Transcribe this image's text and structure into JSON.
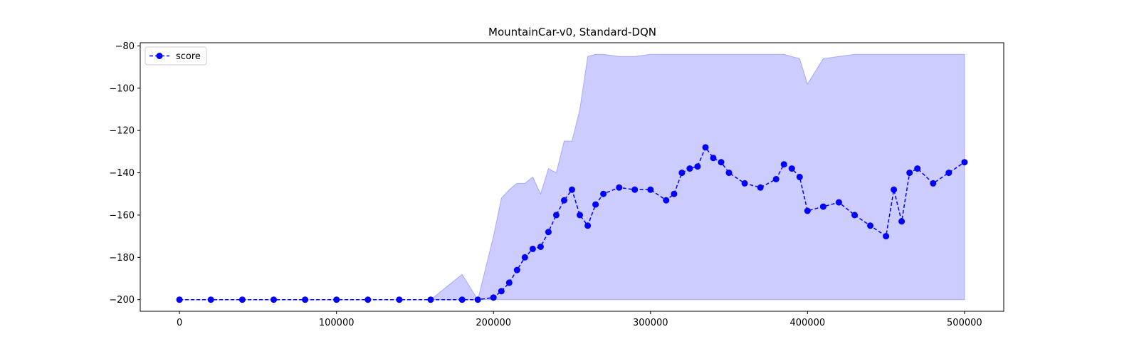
{
  "chart_data": {
    "type": "line",
    "title": "MountainCar-v0, Standard-DQN",
    "xlabel": "",
    "ylabel": "",
    "xlim": [
      -25000,
      525000
    ],
    "ylim": [
      -205.5,
      -78.5
    ],
    "x_ticks": [
      0,
      100000,
      200000,
      300000,
      400000,
      500000
    ],
    "y_ticks": [
      -200,
      -180,
      -160,
      -140,
      -120,
      -100,
      -80
    ],
    "legend": {
      "position": "top-left",
      "entries": [
        "score"
      ]
    },
    "colors": {
      "line": "#0000ff",
      "band": "#0000ff"
    },
    "series": [
      {
        "name": "score",
        "style": "dashed line with circle markers",
        "x": [
          0,
          20000,
          40000,
          60000,
          80000,
          100000,
          120000,
          140000,
          160000,
          180000,
          190000,
          200000,
          205000,
          210000,
          215000,
          220000,
          225000,
          230000,
          235000,
          240000,
          245000,
          250000,
          255000,
          260000,
          265000,
          270000,
          280000,
          290000,
          300000,
          310000,
          315000,
          320000,
          325000,
          330000,
          335000,
          340000,
          345000,
          350000,
          360000,
          370000,
          380000,
          385000,
          390000,
          395000,
          400000,
          410000,
          420000,
          430000,
          440000,
          450000,
          455000,
          460000,
          465000,
          470000,
          480000,
          490000,
          500000
        ],
        "y": [
          -200,
          -200,
          -200,
          -200,
          -200,
          -200,
          -200,
          -200,
          -200,
          -200,
          -200,
          -199,
          -196,
          -192,
          -186,
          -180,
          -176,
          -175,
          -168,
          -160,
          -153,
          -148,
          -160,
          -165,
          -155,
          -150,
          -147,
          -148,
          -148,
          -153,
          -150,
          -140,
          -138,
          -137,
          -128,
          -133,
          -135,
          -140,
          -145,
          -147,
          -143,
          -136,
          -138,
          -142,
          -158,
          -156,
          -154,
          -160,
          -165,
          -170,
          -148,
          -163,
          -140,
          -138,
          -145,
          -140,
          -135
        ],
        "band_upper": [
          -200,
          -200,
          -200,
          -200,
          -200,
          -200,
          -200,
          -200,
          -200,
          -188,
          -200,
          -170,
          -152,
          -148,
          -145,
          -145,
          -142,
          -150,
          -138,
          -140,
          -125,
          -125,
          -110,
          -85,
          -84,
          -84,
          -85,
          -85,
          -84,
          -84,
          -84,
          -84,
          -84,
          -84,
          -84,
          -84,
          -84,
          -84,
          -84,
          -84,
          -84,
          -84,
          -85,
          -86,
          -98,
          -86,
          -85,
          -84,
          -84,
          -84,
          -84,
          -84,
          -84,
          -84,
          -84,
          -84,
          -84
        ],
        "band_lower": [
          -200,
          -200,
          -200,
          -200,
          -200,
          -200,
          -200,
          -200,
          -200,
          -200,
          -200,
          -200,
          -200,
          -200,
          -200,
          -200,
          -200,
          -200,
          -200,
          -200,
          -200,
          -200,
          -200,
          -200,
          -200,
          -200,
          -200,
          -200,
          -200,
          -200,
          -200,
          -200,
          -200,
          -200,
          -200,
          -200,
          -200,
          -200,
          -200,
          -200,
          -200,
          -200,
          -200,
          -200,
          -200,
          -200,
          -200,
          -200,
          -200,
          -200,
          -200,
          -200,
          -200,
          -200,
          -200,
          -200,
          -200
        ]
      }
    ]
  }
}
